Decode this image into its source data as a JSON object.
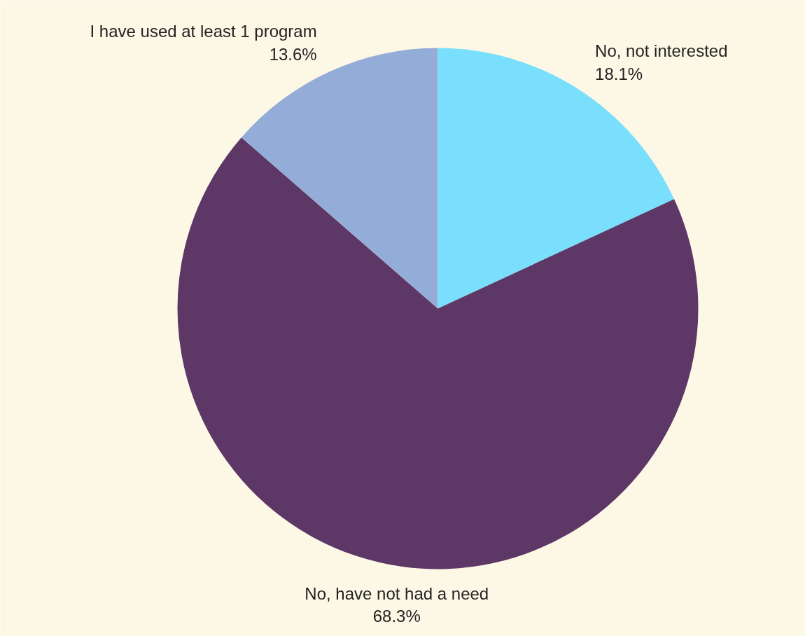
{
  "chart_data": {
    "type": "pie",
    "categories": [
      "No, not interested",
      "No, have not had a need",
      "I have used at least 1 program"
    ],
    "values": [
      18.1,
      68.3,
      13.6
    ],
    "colors": [
      "#7adffc",
      "#5d3766",
      "#94acd8"
    ],
    "value_labels": [
      "18.1%",
      "68.3%",
      "13.6%"
    ]
  }
}
